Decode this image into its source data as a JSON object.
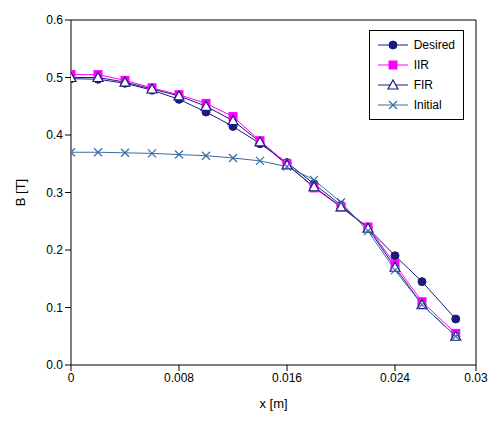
{
  "chart_data": {
    "type": "line",
    "x_label": "x [m]",
    "y_label": "B [T]",
    "x": [
      0,
      0.002,
      0.004,
      0.006,
      0.008,
      0.01,
      0.012,
      0.014,
      0.016,
      0.018,
      0.02,
      0.022,
      0.024,
      0.026,
      0.0285
    ],
    "series": [
      {
        "name": "Desired",
        "color": "#1a1a80",
        "marker": "circle",
        "values": [
          0.498,
          0.497,
          0.49,
          0.478,
          0.462,
          0.44,
          0.415,
          0.385,
          0.352,
          0.315,
          0.278,
          0.238,
          0.19,
          0.145,
          0.08
        ]
      },
      {
        "name": "IIR",
        "color": "#ff00ff",
        "marker": "square",
        "values": [
          0.505,
          0.505,
          0.495,
          0.482,
          0.47,
          0.455,
          0.432,
          0.39,
          0.35,
          0.308,
          0.275,
          0.24,
          0.175,
          0.11,
          0.055
        ]
      },
      {
        "name": "FIR",
        "color": "#1a1a80",
        "marker": "triangle",
        "values": [
          0.5,
          0.5,
          0.492,
          0.48,
          0.468,
          0.45,
          0.425,
          0.388,
          0.348,
          0.31,
          0.275,
          0.238,
          0.17,
          0.105,
          0.05
        ]
      },
      {
        "name": "Initial",
        "color": "#3a6ea5",
        "marker": "cross",
        "values": [
          0.37,
          0.37,
          0.369,
          0.368,
          0.366,
          0.364,
          0.36,
          0.355,
          0.345,
          0.322,
          0.283,
          0.233,
          0.165,
          0.105,
          0.05
        ]
      }
    ],
    "xlim": [
      0,
      0.03
    ],
    "xticks": [
      0,
      0.008,
      0.016,
      0.024,
      0.03
    ],
    "ylim": [
      0,
      0.6
    ],
    "yticks": [
      {
        "value": 0,
        "label": "0.0"
      },
      0.1,
      0.2,
      0.3,
      0.4,
      0.5,
      0.6
    ],
    "grid": false,
    "legend": "upper right"
  }
}
